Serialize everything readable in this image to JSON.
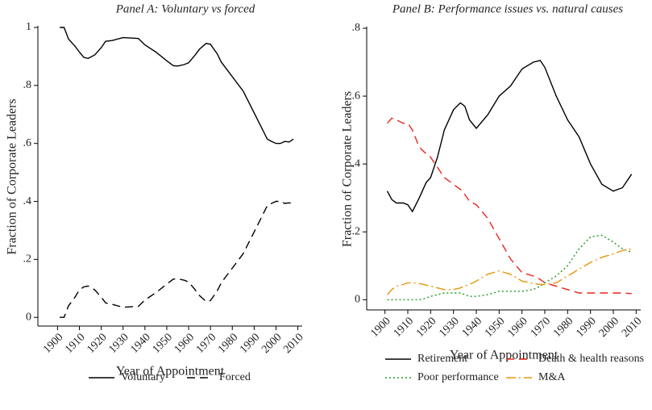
{
  "chart_data": [
    {
      "type": "line",
      "title": "Panel A: Voluntary vs forced",
      "x_label": "Year of Appointment",
      "y_label": "Fraction of Corporate Leaders",
      "x": [
        1901,
        1903,
        1905,
        1908,
        1910,
        1912,
        1914,
        1917,
        1920,
        1922,
        1925,
        1930,
        1935,
        1937,
        1940,
        1945,
        1950,
        1953,
        1955,
        1958,
        1960,
        1963,
        1965,
        1968,
        1970,
        1973,
        1975,
        1980,
        1985,
        1990,
        1993,
        1996,
        1998,
        2000,
        2002,
        2004,
        2006,
        2008
      ],
      "series": [
        {
          "name": "Voluntary",
          "color": "#000000",
          "style": "solid",
          "values": [
            1.0,
            1.0,
            0.96,
            0.935,
            0.915,
            0.897,
            0.893,
            0.905,
            0.93,
            0.952,
            0.955,
            0.965,
            0.963,
            0.962,
            0.94,
            0.915,
            0.885,
            0.868,
            0.867,
            0.872,
            0.878,
            0.905,
            0.925,
            0.945,
            0.942,
            0.91,
            0.88,
            0.83,
            0.78,
            0.705,
            0.66,
            0.615,
            0.607,
            0.6,
            0.6,
            0.607,
            0.605,
            0.615
          ]
        },
        {
          "name": "Forced",
          "color": "#000000",
          "style": "dashed",
          "values": [
            0,
            0,
            0.04,
            0.07,
            0.095,
            0.105,
            0.108,
            0.095,
            0.07,
            0.05,
            0.045,
            0.035,
            0.037,
            0.038,
            0.06,
            0.085,
            0.115,
            0.132,
            0.133,
            0.128,
            0.122,
            0.095,
            0.075,
            0.055,
            0.058,
            0.09,
            0.12,
            0.17,
            0.22,
            0.295,
            0.34,
            0.385,
            0.393,
            0.4,
            0.4,
            0.393,
            0.395,
            0.392
          ]
        }
      ],
      "xlim": [
        1891,
        2012
      ],
      "xticks": [
        1900,
        1910,
        1920,
        1930,
        1940,
        1950,
        1960,
        1970,
        1980,
        1990,
        2000,
        2010
      ],
      "ylim": [
        -0.03,
        1
      ],
      "yticks": [
        0,
        {
          "value": 0.2,
          "label": ".2"
        },
        {
          "value": 0.4,
          "label": ".4"
        },
        {
          "value": 0.6,
          "label": ".6"
        },
        {
          "value": 0.8,
          "label": ".8"
        },
        1
      ],
      "grid": false,
      "legend": "bottom"
    },
    {
      "type": "line",
      "title": "Panel B: Performance issues vs. natural causes",
      "x_label": "Year of Appointment",
      "y_label": "Fraction of Corporate Leaders",
      "x": [
        1901,
        1903,
        1905,
        1908,
        1910,
        1912,
        1915,
        1918,
        1920,
        1923,
        1926,
        1930,
        1933,
        1935,
        1937,
        1940,
        1945,
        1950,
        1955,
        1960,
        1965,
        1968,
        1970,
        1975,
        1980,
        1985,
        1990,
        1995,
        2000,
        2004,
        2008
      ],
      "series": [
        {
          "name": "Retirement",
          "color": "#000000",
          "style": "solid",
          "values": [
            0.32,
            0.295,
            0.285,
            0.285,
            0.28,
            0.26,
            0.3,
            0.345,
            0.36,
            0.42,
            0.5,
            0.56,
            0.58,
            0.57,
            0.53,
            0.505,
            0.545,
            0.6,
            0.63,
            0.68,
            0.7,
            0.705,
            0.685,
            0.6,
            0.53,
            0.48,
            0.4,
            0.34,
            0.32,
            0.33,
            0.37
          ]
        },
        {
          "name": "Death & health reasons",
          "color": "#e8261c",
          "style": "dashed",
          "values": [
            0.52,
            0.535,
            0.53,
            0.52,
            0.52,
            0.5,
            0.45,
            0.43,
            0.42,
            0.39,
            0.36,
            0.34,
            0.325,
            0.31,
            0.29,
            0.28,
            0.24,
            0.18,
            0.12,
            0.08,
            0.07,
            0.06,
            0.05,
            0.04,
            0.03,
            0.02,
            0.02,
            0.02,
            0.02,
            0.02,
            0.018
          ]
        },
        {
          "name": "Poor performance",
          "color": "#1e9a1e",
          "style": "dotted",
          "values": [
            0,
            0,
            0,
            0,
            0,
            0,
            0,
            0.005,
            0.01,
            0.015,
            0.02,
            0.02,
            0.02,
            0.015,
            0.01,
            0.01,
            0.015,
            0.025,
            0.025,
            0.025,
            0.03,
            0.04,
            0.05,
            0.07,
            0.1,
            0.15,
            0.185,
            0.19,
            0.17,
            0.15,
            0.14
          ]
        },
        {
          "name": "M&A",
          "color": "#e8960c",
          "style": "dashdot",
          "values": [
            0.015,
            0.03,
            0.04,
            0.045,
            0.05,
            0.05,
            0.048,
            0.043,
            0.04,
            0.035,
            0.03,
            0.03,
            0.035,
            0.04,
            0.045,
            0.055,
            0.075,
            0.085,
            0.075,
            0.055,
            0.048,
            0.045,
            0.045,
            0.05,
            0.07,
            0.09,
            0.11,
            0.125,
            0.135,
            0.145,
            0.15
          ]
        }
      ],
      "xlim": [
        1892,
        2012
      ],
      "xticks": [
        1900,
        1910,
        1920,
        1930,
        1940,
        1950,
        1960,
        1970,
        1980,
        1990,
        2000,
        2010
      ],
      "ylim": [
        -0.03,
        0.8
      ],
      "yticks": [
        0,
        {
          "value": 0.2,
          "label": ".2"
        },
        {
          "value": 0.4,
          "label": ".4"
        },
        {
          "value": 0.6,
          "label": ".6"
        },
        {
          "value": 0.8,
          "label": ".8"
        }
      ],
      "grid": false,
      "legend": "bottom"
    }
  ]
}
